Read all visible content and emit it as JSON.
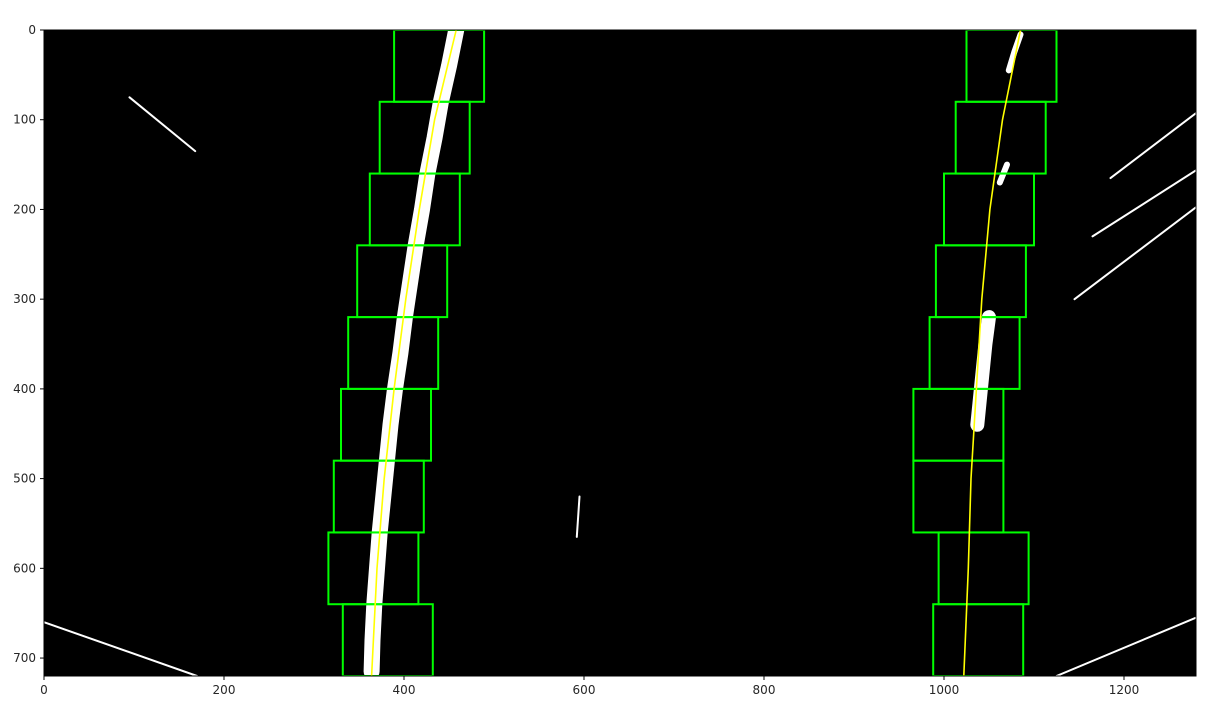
{
  "chart_data": {
    "type": "image",
    "title": "",
    "xlabel": "",
    "ylabel": "",
    "xlim": [
      0,
      1280
    ],
    "ylim": [
      720,
      0
    ],
    "x_ticks": [
      0,
      200,
      400,
      600,
      800,
      1000,
      1200
    ],
    "y_ticks": [
      0,
      100,
      200,
      300,
      400,
      500,
      600,
      700
    ],
    "grid": false,
    "colors": {
      "background": "#000000",
      "pixels": "#ffffff",
      "windows": "#00ff00",
      "fit": "#ffff00"
    },
    "left_windows": [
      {
        "x0": 389,
        "x1": 489,
        "y0": 0,
        "y1": 80
      },
      {
        "x0": 373,
        "x1": 473,
        "y0": 80,
        "y1": 160
      },
      {
        "x0": 362,
        "x1": 462,
        "y0": 160,
        "y1": 240
      },
      {
        "x0": 348,
        "x1": 448,
        "y0": 240,
        "y1": 320
      },
      {
        "x0": 338,
        "x1": 438,
        "y0": 320,
        "y1": 400
      },
      {
        "x0": 330,
        "x1": 430,
        "y0": 400,
        "y1": 480
      },
      {
        "x0": 322,
        "x1": 422,
        "y0": 480,
        "y1": 560
      },
      {
        "x0": 316,
        "x1": 416,
        "y0": 560,
        "y1": 640
      },
      {
        "x0": 332,
        "x1": 432,
        "y0": 640,
        "y1": 720
      }
    ],
    "right_windows": [
      {
        "x0": 1025,
        "x1": 1125,
        "y0": 0,
        "y1": 80
      },
      {
        "x0": 1013,
        "x1": 1113,
        "y0": 80,
        "y1": 160
      },
      {
        "x0": 1000,
        "x1": 1100,
        "y0": 160,
        "y1": 240
      },
      {
        "x0": 991,
        "x1": 1091,
        "y0": 240,
        "y1": 320
      },
      {
        "x0": 984,
        "x1": 1084,
        "y0": 320,
        "y1": 400
      },
      {
        "x0": 966,
        "x1": 1066,
        "y0": 400,
        "y1": 480
      },
      {
        "x0": 966,
        "x1": 1066,
        "y0": 480,
        "y1": 560
      },
      {
        "x0": 994,
        "x1": 1094,
        "y0": 560,
        "y1": 640
      },
      {
        "x0": 988,
        "x1": 1088,
        "y0": 640,
        "y1": 720
      }
    ],
    "left_fit": [
      {
        "x": 458,
        "y": 0
      },
      {
        "x": 434,
        "y": 100
      },
      {
        "x": 417,
        "y": 200
      },
      {
        "x": 402,
        "y": 300
      },
      {
        "x": 389,
        "y": 400
      },
      {
        "x": 378,
        "y": 500
      },
      {
        "x": 370,
        "y": 600
      },
      {
        "x": 364,
        "y": 720
      }
    ],
    "right_fit": [
      {
        "x": 1085,
        "y": 0
      },
      {
        "x": 1065,
        "y": 100
      },
      {
        "x": 1051,
        "y": 200
      },
      {
        "x": 1042,
        "y": 300
      },
      {
        "x": 1036,
        "y": 400
      },
      {
        "x": 1030,
        "y": 500
      },
      {
        "x": 1027,
        "y": 600
      },
      {
        "x": 1022,
        "y": 720
      }
    ],
    "left_lane_pixels": [
      {
        "x": 458,
        "y": 0
      },
      {
        "x": 450,
        "y": 40
      },
      {
        "x": 441,
        "y": 80
      },
      {
        "x": 434,
        "y": 120
      },
      {
        "x": 426,
        "y": 160
      },
      {
        "x": 420,
        "y": 200
      },
      {
        "x": 413,
        "y": 240
      },
      {
        "x": 407,
        "y": 280
      },
      {
        "x": 401,
        "y": 320
      },
      {
        "x": 396,
        "y": 360
      },
      {
        "x": 390,
        "y": 400
      },
      {
        "x": 385,
        "y": 440
      },
      {
        "x": 381,
        "y": 480
      },
      {
        "x": 377,
        "y": 520
      },
      {
        "x": 373,
        "y": 560
      },
      {
        "x": 370,
        "y": 600
      },
      {
        "x": 367,
        "y": 640
      },
      {
        "x": 365,
        "y": 680
      },
      {
        "x": 364,
        "y": 715
      }
    ],
    "right_lane_pixels": [
      {
        "x": 1085,
        "y": 5
      },
      {
        "x": 1078,
        "y": 25
      },
      {
        "x": 1072,
        "y": 45
      },
      {
        "x": 1070,
        "y": 150
      },
      {
        "x": 1062,
        "y": 170
      },
      {
        "x": 1050,
        "y": 320
      },
      {
        "x": 1046,
        "y": 350
      },
      {
        "x": 1043,
        "y": 380
      },
      {
        "x": 1040,
        "y": 410
      },
      {
        "x": 1037,
        "y": 440
      }
    ],
    "noise_streaks": [
      {
        "x0": 95,
        "y0": 75,
        "x1": 168,
        "y1": 135
      },
      {
        "x0": 1290,
        "y0": 85,
        "x1": 1185,
        "y1": 165
      },
      {
        "x0": 1290,
        "y0": 150,
        "x1": 1165,
        "y1": 230
      },
      {
        "x0": 1290,
        "y0": 190,
        "x1": 1145,
        "y1": 300
      },
      {
        "x0": 0,
        "y0": 660,
        "x1": 170,
        "y1": 720
      },
      {
        "x0": 1280,
        "y0": 655,
        "x1": 1125,
        "y1": 720
      },
      {
        "x0": 595,
        "y0": 520,
        "x1": 592,
        "y1": 565
      }
    ]
  }
}
